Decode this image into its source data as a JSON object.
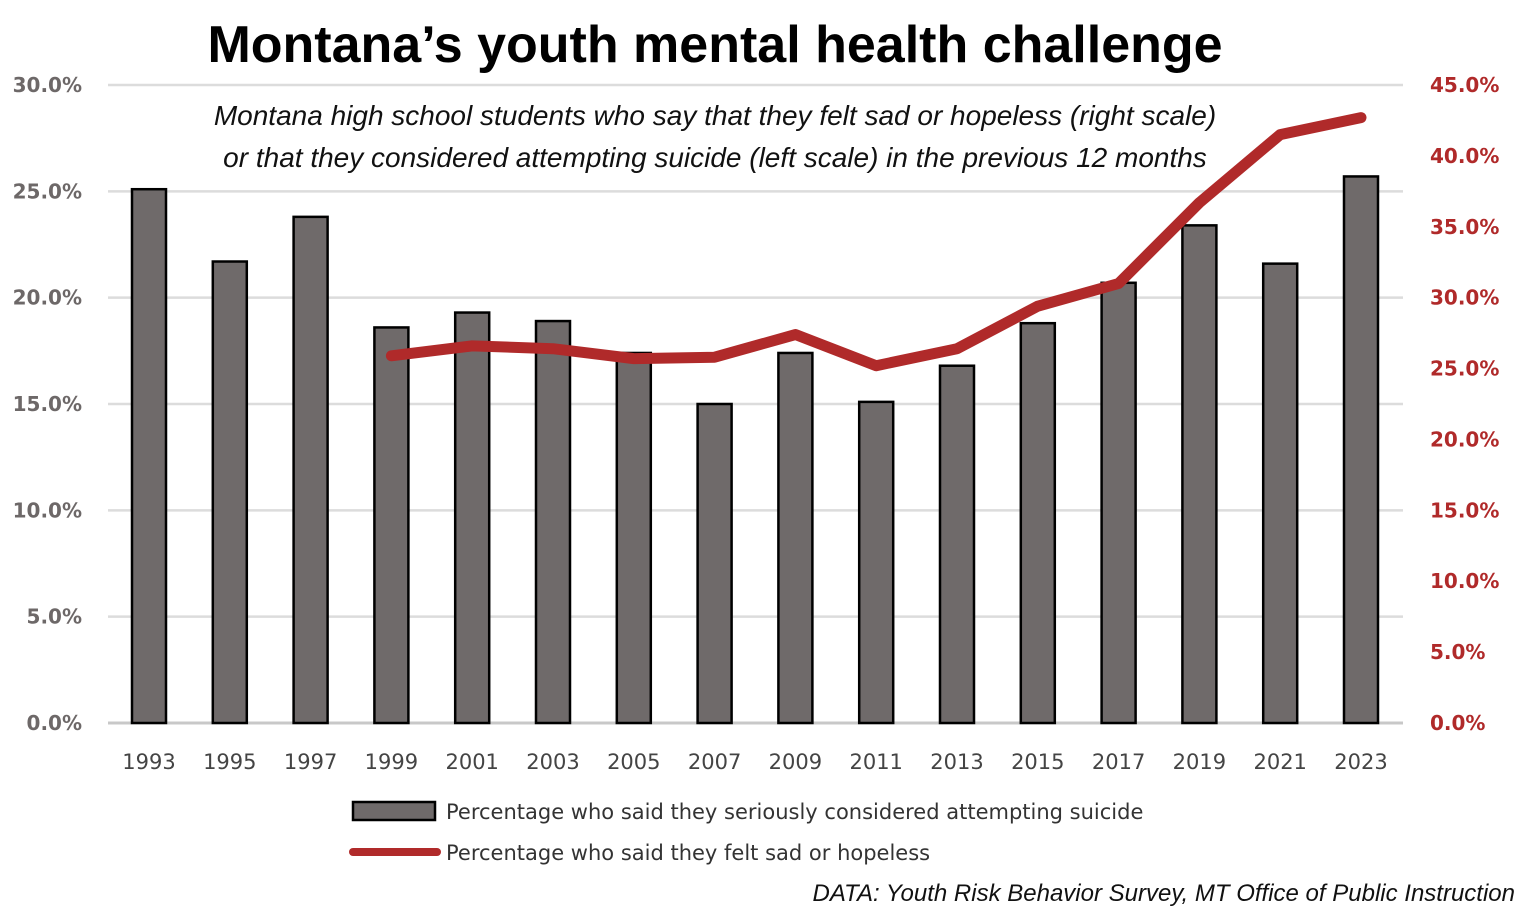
{
  "chart_data": {
    "type": "bar+line",
    "title": "Montana’s youth mental health challenge",
    "subtitle": [
      "Montana high school students who say that they felt sad or hopeless (right scale)",
      "or that they considered attempting suicide (left scale) in the previous 12 months"
    ],
    "categories": [
      "1993",
      "1995",
      "1997",
      "1999",
      "2001",
      "2003",
      "2005",
      "2007",
      "2009",
      "2011",
      "2013",
      "2015",
      "2017",
      "2019",
      "2021",
      "2023"
    ],
    "series": [
      {
        "name": "Percentage who said they seriously considered attempting suicide",
        "type": "bar",
        "axis": "left",
        "color": "#6f6a6a",
        "values": [
          25.1,
          21.7,
          23.8,
          18.6,
          19.3,
          18.9,
          17.4,
          15.0,
          17.4,
          15.1,
          16.8,
          18.8,
          20.7,
          23.4,
          21.6,
          25.7
        ]
      },
      {
        "name": "Percentage who said they felt sad or hopeless",
        "type": "line",
        "axis": "right",
        "color": "#b02a2a",
        "values": [
          null,
          null,
          null,
          25.9,
          26.6,
          26.4,
          25.7,
          25.8,
          27.4,
          25.2,
          26.4,
          29.4,
          31.0,
          36.7,
          41.5,
          42.7
        ]
      }
    ],
    "left_axis": {
      "ylim": [
        0,
        30
      ],
      "ticks": [
        "0.0%",
        "5.0%",
        "10.0%",
        "15.0%",
        "20.0%",
        "25.0%",
        "30.0%"
      ]
    },
    "right_axis": {
      "ylim": [
        0,
        45
      ],
      "ticks": [
        "0.0%",
        "5.0%",
        "10.0%",
        "15.0%",
        "20.0%",
        "25.0%",
        "30.0%",
        "35.0%",
        "40.0%",
        "45.0%"
      ]
    },
    "grid": true,
    "legend": "bottom",
    "source": "DATA: Youth Risk Behavior Survey, MT Office of Public Instruction"
  }
}
